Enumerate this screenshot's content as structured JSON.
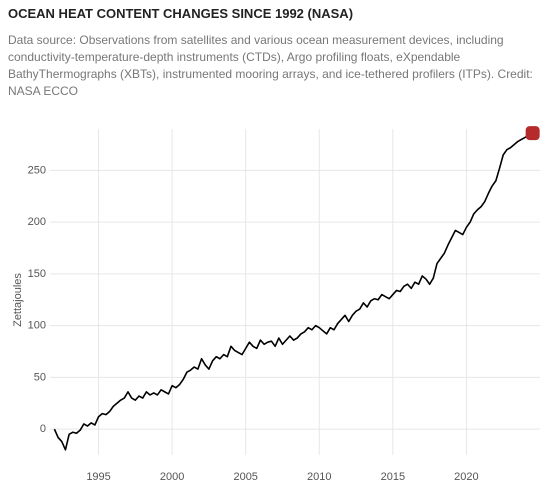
{
  "chart_data": {
    "type": "line",
    "title": "OCEAN HEAT CONTENT CHANGES SINCE 1992 (NASA)",
    "subtitle": "Data source: Observations from satellites and various ocean measurement devices, including conductivity-temperature-depth instruments (CTDs), Argo profiling floats, eXpendable BathyThermographs (XBTs), instrumented mooring arrays, and ice-tethered profilers (ITPs). Credit: NASA ECCO",
    "y_label": "Zettajoules",
    "x": [
      1992.0,
      1992.25,
      1992.5,
      1992.75,
      1993.0,
      1993.25,
      1993.5,
      1993.75,
      1994.0,
      1994.25,
      1994.5,
      1994.75,
      1995.0,
      1995.25,
      1995.5,
      1995.75,
      1996.0,
      1996.25,
      1996.5,
      1996.75,
      1997.0,
      1997.25,
      1997.5,
      1997.75,
      1998.0,
      1998.25,
      1998.5,
      1998.75,
      1999.0,
      1999.25,
      1999.5,
      1999.75,
      2000.0,
      2000.25,
      2000.5,
      2000.75,
      2001.0,
      2001.25,
      2001.5,
      2001.75,
      2002.0,
      2002.25,
      2002.5,
      2002.75,
      2003.0,
      2003.25,
      2003.5,
      2003.75,
      2004.0,
      2004.25,
      2004.5,
      2004.75,
      2005.0,
      2005.25,
      2005.5,
      2005.75,
      2006.0,
      2006.25,
      2006.5,
      2006.75,
      2007.0,
      2007.25,
      2007.5,
      2007.75,
      2008.0,
      2008.25,
      2008.5,
      2008.75,
      2009.0,
      2009.25,
      2009.5,
      2009.75,
      2010.0,
      2010.25,
      2010.5,
      2010.75,
      2011.0,
      2011.25,
      2011.5,
      2011.75,
      2012.0,
      2012.25,
      2012.5,
      2012.75,
      2013.0,
      2013.25,
      2013.5,
      2013.75,
      2014.0,
      2014.25,
      2014.5,
      2014.75,
      2015.0,
      2015.25,
      2015.5,
      2015.75,
      2016.0,
      2016.25,
      2016.5,
      2016.75,
      2017.0,
      2017.25,
      2017.5,
      2017.75,
      2018.0,
      2018.25,
      2018.5,
      2018.75,
      2019.0,
      2019.25,
      2019.5,
      2019.75,
      2020.0,
      2020.25,
      2020.5,
      2020.75,
      2021.0,
      2021.25,
      2021.5,
      2021.75,
      2022.0,
      2022.25,
      2022.5,
      2022.75,
      2023.0,
      2023.25,
      2023.5,
      2023.75,
      2024.0,
      2024.25,
      2024.5
    ],
    "series": [
      {
        "name": "Zettajoules",
        "color": "#000000",
        "values": [
          0,
          -8,
          -12,
          -20,
          -5,
          -3,
          -4,
          -1,
          5,
          3,
          6,
          4,
          12,
          15,
          14,
          17,
          22,
          25,
          28,
          30,
          36,
          30,
          28,
          32,
          30,
          36,
          33,
          35,
          33,
          38,
          36,
          34,
          42,
          40,
          43,
          48,
          55,
          57,
          60,
          58,
          68,
          62,
          58,
          66,
          70,
          68,
          72,
          70,
          80,
          76,
          74,
          72,
          78,
          84,
          80,
          78,
          86,
          82,
          84,
          85,
          80,
          88,
          82,
          86,
          90,
          86,
          88,
          92,
          94,
          98,
          96,
          100,
          98,
          95,
          92,
          98,
          96,
          102,
          106,
          110,
          104,
          110,
          114,
          116,
          122,
          118,
          124,
          126,
          125,
          130,
          128,
          126,
          130,
          134,
          133,
          138,
          140,
          136,
          142,
          140,
          148,
          145,
          140,
          146,
          160,
          165,
          170,
          178,
          185,
          192,
          190,
          188,
          195,
          200,
          208,
          212,
          215,
          220,
          228,
          235,
          240,
          252,
          265,
          270,
          272,
          275,
          278,
          280,
          282,
          284,
          286
        ]
      }
    ],
    "highlight_color": "#b52a2a",
    "xlim": [
      1991.7,
      2025
    ],
    "xticks": [
      1995,
      2000,
      2005,
      2010,
      2015,
      2020
    ],
    "ylim": [
      -25,
      290
    ],
    "yticks": [
      0,
      50,
      100,
      150,
      200,
      250
    ],
    "grid": true
  }
}
